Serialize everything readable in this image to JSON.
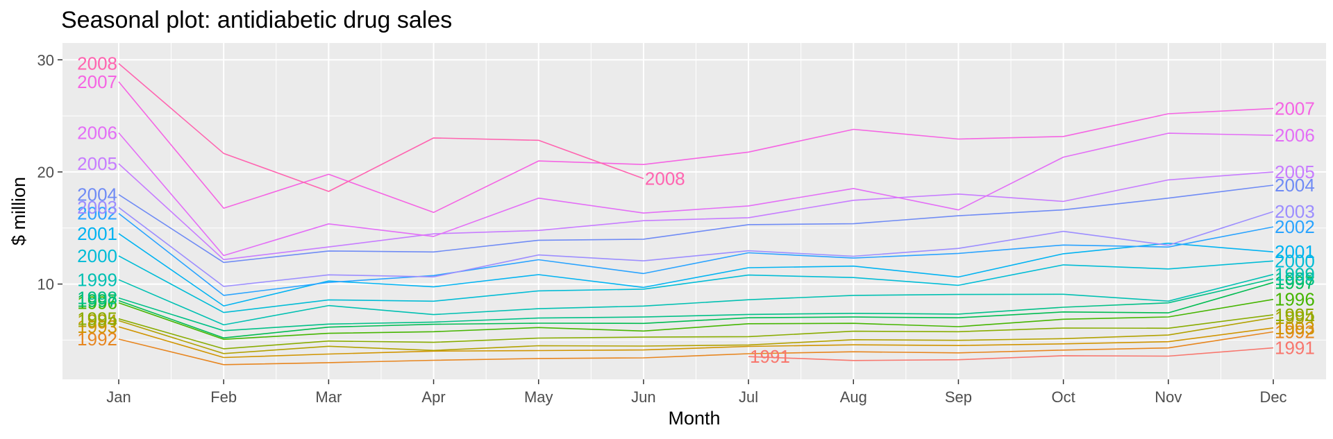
{
  "chart_data": {
    "type": "line",
    "title": "Seasonal plot: antidiabetic drug sales",
    "xlabel": "Month",
    "ylabel": "$ million",
    "categories": [
      "Jan",
      "Feb",
      "Mar",
      "Apr",
      "May",
      "Jun",
      "Jul",
      "Aug",
      "Sep",
      "Oct",
      "Nov",
      "Dec"
    ],
    "ylim": [
      1.5,
      31.5
    ],
    "yticks": [
      10,
      20,
      30
    ],
    "grid": true,
    "legend": "direct labels at line ends",
    "series": [
      {
        "name": "1991",
        "color": "#F8766D",
        "values": [
          null,
          null,
          null,
          null,
          null,
          null,
          3.53,
          3.18,
          3.25,
          3.61,
          3.57,
          4.31
        ]
      },
      {
        "name": "1992",
        "color": "#E7851E",
        "values": [
          5.09,
          2.81,
          2.99,
          3.2,
          3.36,
          3.42,
          3.79,
          3.96,
          3.86,
          4.11,
          4.3,
          5.74
        ]
      },
      {
        "name": "1993",
        "color": "#D09400",
        "values": [
          6.19,
          3.45,
          3.76,
          4.02,
          4.07,
          4.12,
          4.44,
          4.58,
          4.52,
          4.67,
          4.86,
          6.09
        ]
      },
      {
        "name": "1994",
        "color": "#B2A100",
        "values": [
          6.73,
          3.8,
          4.45,
          4.08,
          4.5,
          4.47,
          4.57,
          5.04,
          4.98,
          5.13,
          5.45,
          7.0
        ]
      },
      {
        "name": "1995",
        "color": "#89AC00",
        "values": [
          6.9,
          4.23,
          4.92,
          4.8,
          5.18,
          5.27,
          5.31,
          5.79,
          5.75,
          6.08,
          6.06,
          7.26
        ]
      },
      {
        "name": "1996",
        "color": "#45B500",
        "values": [
          8.33,
          5.07,
          5.61,
          5.75,
          6.12,
          5.81,
          6.46,
          6.5,
          6.2,
          6.86,
          7.07,
          8.63
        ]
      },
      {
        "name": "1997",
        "color": "#00BC51",
        "values": [
          8.52,
          5.2,
          6.16,
          6.41,
          6.51,
          6.49,
          6.99,
          7.06,
          6.99,
          7.51,
          7.43,
          10.14
        ]
      },
      {
        "name": "1998",
        "color": "#00C087",
        "values": [
          8.76,
          5.84,
          6.43,
          6.61,
          6.97,
          7.06,
          7.29,
          7.39,
          7.32,
          7.93,
          8.32,
          10.46
        ]
      },
      {
        "name": "1999",
        "color": "#00C0B2",
        "values": [
          10.39,
          6.36,
          8.08,
          7.28,
          7.8,
          8.04,
          8.6,
          8.99,
          9.07,
          9.09,
          8.48,
          10.86
        ]
      },
      {
        "name": "2000",
        "color": "#00BCD6",
        "values": [
          12.51,
          7.46,
          8.59,
          8.47,
          9.39,
          9.55,
          10.8,
          10.58,
          9.89,
          11.71,
          11.35,
          12.06
        ]
      },
      {
        "name": "2001",
        "color": "#00B3F2",
        "values": [
          14.5,
          8.05,
          10.27,
          9.75,
          10.84,
          9.7,
          11.46,
          11.6,
          10.63,
          12.7,
          13.64,
          12.87
        ]
      },
      {
        "name": "2002",
        "color": "#29A3FF",
        "values": [
          16.3,
          8.99,
          10.15,
          10.76,
          12.17,
          10.94,
          12.79,
          12.32,
          12.73,
          13.48,
          13.3,
          15.1
        ]
      },
      {
        "name": "2003",
        "color": "#9C8DFF",
        "values": [
          16.83,
          9.79,
          10.82,
          10.64,
          12.6,
          12.07,
          12.97,
          12.48,
          13.18,
          14.7,
          13.46,
          16.46
        ]
      },
      {
        "name": "2004",
        "color": "#6F8BF5",
        "values": [
          17.98,
          11.93,
          12.95,
          12.86,
          13.91,
          14.0,
          15.3,
          15.38,
          16.09,
          16.62,
          17.66,
          18.82
        ]
      },
      {
        "name": "2005",
        "color": "#C77CFF",
        "values": [
          20.73,
          12.18,
          13.31,
          14.48,
          14.78,
          15.65,
          15.92,
          17.47,
          18.03,
          17.37,
          19.29,
          20.0
        ]
      },
      {
        "name": "2006",
        "color": "#E36EF6",
        "values": [
          23.49,
          12.54,
          15.37,
          14.25,
          17.66,
          16.33,
          16.97,
          18.52,
          16.61,
          21.32,
          23.45,
          23.27
        ]
      },
      {
        "name": "2007",
        "color": "#F564E3",
        "values": [
          28.04,
          16.76,
          19.79,
          16.39,
          20.98,
          20.66,
          21.77,
          23.8,
          22.93,
          23.16,
          25.19,
          25.66
        ]
      },
      {
        "name": "2008",
        "color": "#FF64B0",
        "values": [
          29.67,
          21.65,
          18.26,
          23.03,
          22.82,
          19.41,
          null,
          null,
          null,
          null,
          null,
          null
        ]
      }
    ],
    "start_labels": [
      {
        "text": "1992",
        "color": "#E7851E",
        "y": 5.09
      },
      {
        "text": "1993",
        "color": "#D09400",
        "y": 6.19
      },
      {
        "text": "1994",
        "color": "#B2A100",
        "y": 6.73
      },
      {
        "text": "1995",
        "color": "#89AC00",
        "y": 6.9
      },
      {
        "text": "1996",
        "color": "#45B500",
        "y": 8.33
      },
      {
        "text": "1997",
        "color": "#00BC51",
        "y": 8.52
      },
      {
        "text": "1998",
        "color": "#00C087",
        "y": 8.76
      },
      {
        "text": "1999",
        "color": "#00C0B2",
        "y": 10.39
      },
      {
        "text": "2000",
        "color": "#00BCD6",
        "y": 12.51
      },
      {
        "text": "2001",
        "color": "#00B3F2",
        "y": 14.5
      },
      {
        "text": "2002",
        "color": "#29A3FF",
        "y": 16.3
      },
      {
        "text": "2003",
        "color": "#9C8DFF",
        "y": 16.83
      },
      {
        "text": "2004",
        "color": "#6F8BF5",
        "y": 17.98
      },
      {
        "text": "2005",
        "color": "#C77CFF",
        "y": 20.73
      },
      {
        "text": "2006",
        "color": "#E36EF6",
        "y": 23.49
      },
      {
        "text": "2007",
        "color": "#F564E3",
        "y": 28.04
      },
      {
        "text": "2008",
        "color": "#FF64B0",
        "y": 29.67
      }
    ],
    "end_labels": [
      {
        "text": "1991",
        "color": "#F8766D",
        "month": "Jul",
        "y": 3.53,
        "side": "start"
      },
      {
        "text": "1991",
        "color": "#F8766D",
        "month": "Dec",
        "y": 4.31,
        "side": "end"
      },
      {
        "text": "1992",
        "color": "#E7851E",
        "month": "Dec",
        "y": 5.74,
        "side": "end"
      },
      {
        "text": "1993",
        "color": "#D09400",
        "month": "Dec",
        "y": 6.09,
        "side": "end"
      },
      {
        "text": "1994",
        "color": "#B2A100",
        "month": "Dec",
        "y": 7.0,
        "side": "end"
      },
      {
        "text": "1995",
        "color": "#89AC00",
        "month": "Dec",
        "y": 7.26,
        "side": "end"
      },
      {
        "text": "1996",
        "color": "#45B500",
        "month": "Dec",
        "y": 8.63,
        "side": "end"
      },
      {
        "text": "1997",
        "color": "#00BC51",
        "month": "Dec",
        "y": 10.14,
        "side": "end"
      },
      {
        "text": "1998",
        "color": "#00C087",
        "month": "Dec",
        "y": 10.46,
        "side": "end"
      },
      {
        "text": "1999",
        "color": "#00C0B2",
        "month": "Dec",
        "y": 10.86,
        "side": "end"
      },
      {
        "text": "2000",
        "color": "#00BCD6",
        "month": "Dec",
        "y": 12.06,
        "side": "end"
      },
      {
        "text": "2001",
        "color": "#00B3F2",
        "month": "Dec",
        "y": 12.87,
        "side": "end"
      },
      {
        "text": "2002",
        "color": "#29A3FF",
        "month": "Dec",
        "y": 15.1,
        "side": "end"
      },
      {
        "text": "2003",
        "color": "#9C8DFF",
        "month": "Dec",
        "y": 16.46,
        "side": "end"
      },
      {
        "text": "2004",
        "color": "#6F8BF5",
        "month": "Dec",
        "y": 18.82,
        "side": "end"
      },
      {
        "text": "2005",
        "color": "#C77CFF",
        "month": "Dec",
        "y": 20.0,
        "side": "end"
      },
      {
        "text": "2006",
        "color": "#E36EF6",
        "month": "Dec",
        "y": 23.27,
        "side": "end"
      },
      {
        "text": "2007",
        "color": "#F564E3",
        "month": "Dec",
        "y": 25.66,
        "side": "end"
      },
      {
        "text": "2008",
        "color": "#FF64B0",
        "month": "Jun",
        "y": 19.41,
        "side": "end"
      }
    ]
  },
  "colors": {
    "panel_background": "#EBEBEB",
    "grid_major": "#FFFFFF",
    "tick_text": "#4D4D4D"
  }
}
